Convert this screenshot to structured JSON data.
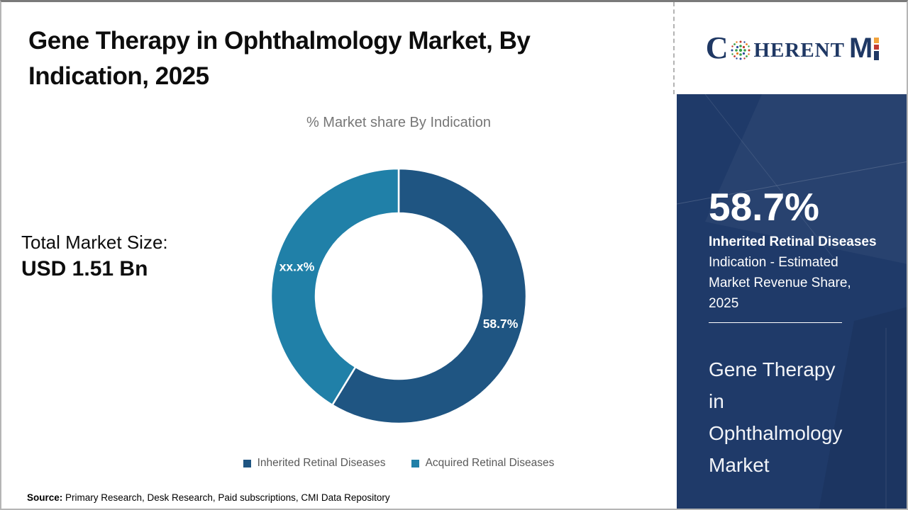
{
  "header": {
    "title": "Gene Therapy in Ophthalmology Market, By Indication, 2025"
  },
  "chart_data": {
    "type": "pie",
    "donut": true,
    "title": "% Market share By Indication",
    "categories": [
      "Inherited Retinal Diseases",
      "Acquired Retinal Diseases"
    ],
    "values": [
      58.7,
      41.3
    ],
    "slice_labels": [
      "58.7%",
      "xx.x%"
    ],
    "colors": [
      "#1F5582",
      "#2080A8"
    ],
    "legend_position": "bottom",
    "label_color": "#ffffff"
  },
  "total_market": {
    "label": "Total Market Size:",
    "value": "USD 1.51 Bn"
  },
  "source": {
    "label": "Source:",
    "text": " Primary Research, Desk Research, Paid subscriptions, CMI Data Repository"
  },
  "logo": {
    "name": "CoherentMI",
    "part_c": "C",
    "part_herent": "HERENT",
    "part_m": "M"
  },
  "sidebar": {
    "stat_value": "58.7%",
    "stat_bold": "Inherited Retinal Diseases",
    "stat_rest": "Indication - Estimated Market Revenue Share, 2025",
    "market_name_lines": [
      "Gene Therapy",
      "in",
      "Ophthalmology",
      "Market"
    ],
    "background": "#1F3A69"
  }
}
